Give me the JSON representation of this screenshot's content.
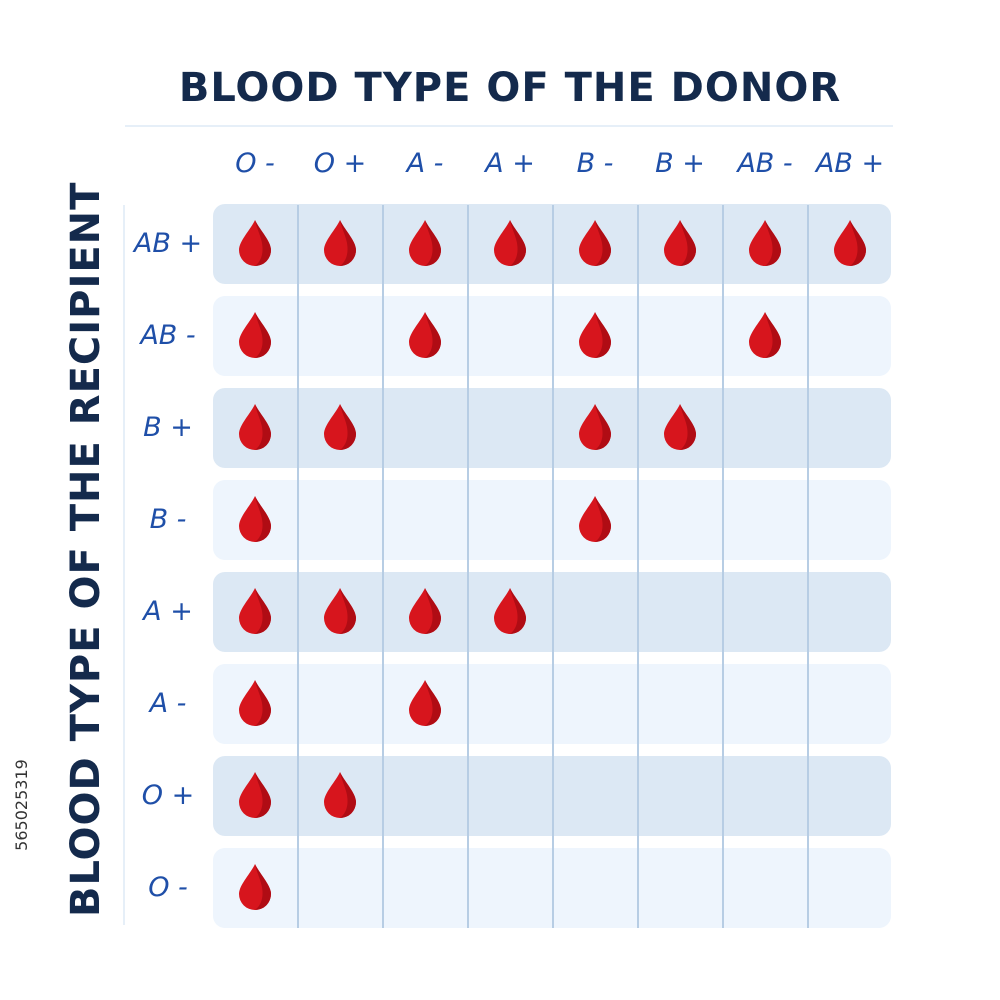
{
  "title": "BLOOD TYPE OF THE DONOR",
  "y_axis_label": "BLOOD TYPE OF THE RECIPIENT",
  "watermark_id": "565025319",
  "icon": "blood-drop-icon",
  "colors": {
    "drop": "#d7151d",
    "drop_shade": "#b00c14",
    "title": "#142a4c",
    "labels": "#1f4fa8",
    "row_dark": "#dce8f4",
    "row_light": "#eef5fd"
  },
  "donor_types": [
    "O -",
    "O +",
    "A -",
    "A +",
    "B -",
    "B +",
    "AB -",
    "AB +"
  ],
  "recipient_types": [
    "AB +",
    "AB -",
    "B +",
    "B -",
    "A +",
    "A -",
    "O +",
    "O -"
  ],
  "compatibility": [
    [
      1,
      1,
      1,
      1,
      1,
      1,
      1,
      1
    ],
    [
      1,
      0,
      1,
      0,
      1,
      0,
      1,
      0
    ],
    [
      1,
      1,
      0,
      0,
      1,
      1,
      0,
      0
    ],
    [
      1,
      0,
      0,
      0,
      1,
      0,
      0,
      0
    ],
    [
      1,
      1,
      1,
      1,
      0,
      0,
      0,
      0
    ],
    [
      1,
      0,
      1,
      0,
      0,
      0,
      0,
      0
    ],
    [
      1,
      1,
      0,
      0,
      0,
      0,
      0,
      0
    ],
    [
      1,
      0,
      0,
      0,
      0,
      0,
      0,
      0
    ]
  ]
}
